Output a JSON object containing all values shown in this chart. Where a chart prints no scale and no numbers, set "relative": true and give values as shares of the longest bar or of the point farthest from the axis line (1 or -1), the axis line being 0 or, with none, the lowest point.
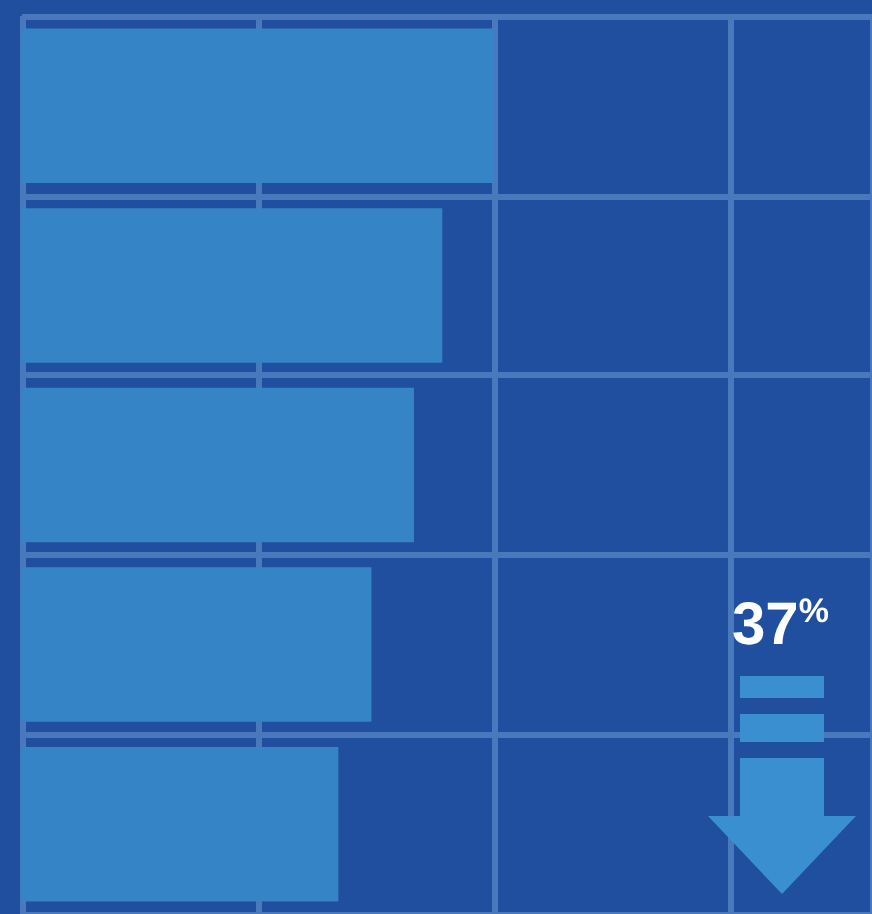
{
  "chart_data": {
    "type": "bar",
    "orientation": "horizontal",
    "relative": true,
    "categories": [
      null,
      null,
      null,
      null,
      null
    ],
    "values": [
      1,
      0.89,
      0.83,
      0.74,
      0.67
    ],
    "color": "#3585c6",
    "grid": true,
    "annotations": [
      "37$^{%}$"
    ]
  }
}
